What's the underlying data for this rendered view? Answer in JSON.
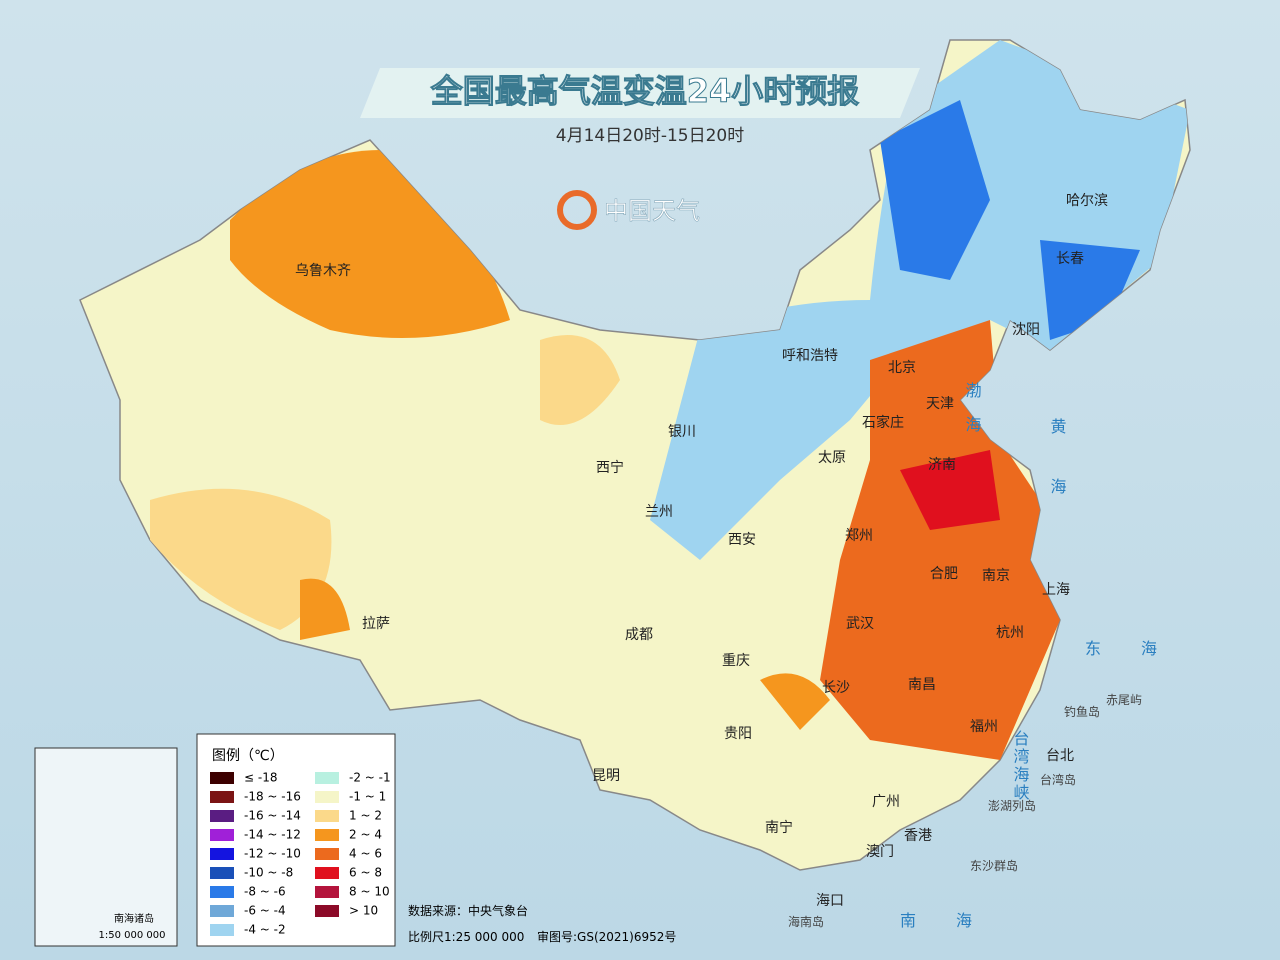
{
  "header": {
    "title": "全国最高气温变温24小时预报",
    "subtitle": "4月14日20时-15日20时",
    "logo": "中国天气"
  },
  "cities": [
    "乌鲁木齐",
    "呼和浩特",
    "北京",
    "天津",
    "石家庄",
    "太原",
    "济南",
    "银川",
    "西宁",
    "兰州",
    "西安",
    "郑州",
    "合肥",
    "南京",
    "上海",
    "武汉",
    "杭州",
    "拉萨",
    "成都",
    "重庆",
    "长沙",
    "南昌",
    "贵阳",
    "福州",
    "台北",
    "昆明",
    "广州",
    "香港",
    "澳门",
    "南宁",
    "海口",
    "哈尔滨",
    "长春",
    "沈阳"
  ],
  "seas": [
    "渤海",
    "黄海",
    "东海",
    "南海",
    "台湾海峡"
  ],
  "islands": [
    "钓鱼岛",
    "赤尾屿",
    "澎湖列岛",
    "东沙群岛",
    "海南岛",
    "台湾岛"
  ],
  "legend": {
    "title": "图例（℃）",
    "items": [
      {
        "label": "≤ -18",
        "color": "#3d0000"
      },
      {
        "label": "-18 ~ -16",
        "color": "#7b1414"
      },
      {
        "label": "-16 ~ -14",
        "color": "#5a1d82"
      },
      {
        "label": "-14 ~ -12",
        "color": "#a020d8"
      },
      {
        "label": "-12 ~ -10",
        "color": "#1414e0"
      },
      {
        "label": "-10 ~ -8",
        "color": "#1a50b8"
      },
      {
        "label": "-8 ~ -6",
        "color": "#2a7ae8"
      },
      {
        "label": "-6 ~ -4",
        "color": "#6fa8d8"
      },
      {
        "label": "-4 ~ -2",
        "color": "#9fd4f0"
      },
      {
        "label": "-2 ~ -1",
        "color": "#b8f0e0"
      },
      {
        "label": "-1 ~ 1",
        "color": "#f5f5c8"
      },
      {
        "label": "1 ~ 2",
        "color": "#fbd98a"
      },
      {
        "label": "2 ~ 4",
        "color": "#f5961e"
      },
      {
        "label": "4 ~ 6",
        "color": "#ec6a1e"
      },
      {
        "label": "6 ~ 8",
        "color": "#e0101e"
      },
      {
        "label": "8 ~ 10",
        "color": "#b4143c"
      },
      {
        "label": "> 10",
        "color": "#8c0a28"
      }
    ]
  },
  "footer": {
    "source": "数据来源：中央气象台",
    "scale": "比例尺1:25 000 000",
    "approval": "审图号:GS(2021)6952号"
  },
  "inset": {
    "title": "南海诸岛",
    "scale": "1:50 000 000"
  }
}
